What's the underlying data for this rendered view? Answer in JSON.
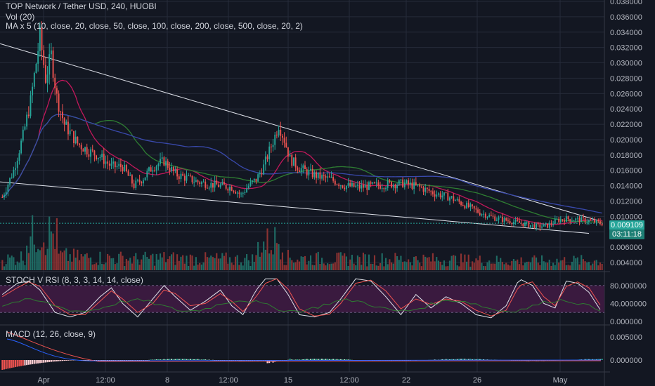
{
  "header": {
    "title": "TOP Network / Tether USD, 240, HUOBI",
    "vol_label": "Vol (20)",
    "ma_label": "MA x 5 (10, close, 20, close, 50, close, 100, close, 200, close, 500, close, 20, 2)"
  },
  "stoch_label": "STOCH V RSI (8, 3, 3, 14, 14, close)",
  "macd_label": "MACD (12, 26, close, 9)",
  "last_price": "0.009109",
  "countdown": "03:11:18",
  "colors": {
    "background": "#131722",
    "grid": "#262b3a",
    "up": "#26a69a",
    "down": "#ef5350",
    "stoch_band": "#3a1a3f",
    "price_tag": "#26a69a",
    "ma_red": "#c2185b",
    "ma_green": "#2e7d32",
    "ma_blue": "#3949ab"
  },
  "chart_data": [
    {
      "type": "candlestick",
      "ylim": [
        0.003,
        0.038
      ],
      "x_ticks": [
        "Apr",
        "12:00",
        "8",
        "12:00",
        "15",
        "12:00",
        "22",
        "26",
        "May"
      ],
      "y_ticks": [
        "0.038000",
        "0.036000",
        "0.034000",
        "0.032000",
        "0.030000",
        "0.028000",
        "0.026000",
        "0.024000",
        "0.022000",
        "0.020000",
        "0.018000",
        "0.016000",
        "0.014000",
        "0.012000",
        "0.010000",
        "0.008000",
        "0.006000",
        "0.004000"
      ],
      "price_path": [
        [
          0,
          0.0125
        ],
        [
          6,
          0.016
        ],
        [
          11,
          0.0205
        ],
        [
          15,
          0.025
        ],
        [
          18,
          0.03
        ],
        [
          20,
          0.0335
        ],
        [
          23,
          0.028
        ],
        [
          26,
          0.031
        ],
        [
          29,
          0.0255
        ],
        [
          33,
          0.022
        ],
        [
          40,
          0.0195
        ],
        [
          46,
          0.0185
        ],
        [
          52,
          0.0178
        ],
        [
          58,
          0.0165
        ],
        [
          64,
          0.0165
        ],
        [
          70,
          0.014
        ],
        [
          75,
          0.015
        ],
        [
          80,
          0.0165
        ],
        [
          86,
          0.0172
        ],
        [
          92,
          0.0155
        ],
        [
          98,
          0.015
        ],
        [
          104,
          0.0145
        ],
        [
          110,
          0.0142
        ],
        [
          116,
          0.014
        ],
        [
          122,
          0.0138
        ],
        [
          127,
          0.0128
        ],
        [
          131,
          0.014
        ],
        [
          135,
          0.0148
        ],
        [
          139,
          0.0165
        ],
        [
          142,
          0.0185
        ],
        [
          145,
          0.0205
        ],
        [
          147,
          0.022
        ],
        [
          150,
          0.02
        ],
        [
          153,
          0.0175
        ],
        [
          157,
          0.0165
        ],
        [
          162,
          0.0158
        ],
        [
          168,
          0.0152
        ],
        [
          175,
          0.0148
        ],
        [
          182,
          0.014
        ],
        [
          190,
          0.0138
        ],
        [
          198,
          0.014
        ],
        [
          206,
          0.0142
        ],
        [
          214,
          0.0143
        ],
        [
          222,
          0.0138
        ],
        [
          230,
          0.013
        ],
        [
          238,
          0.0125
        ],
        [
          246,
          0.0115
        ],
        [
          254,
          0.0105
        ],
        [
          262,
          0.0098
        ],
        [
          270,
          0.0094
        ],
        [
          278,
          0.009
        ],
        [
          285,
          0.0087
        ],
        [
          290,
          0.0088
        ],
        [
          295,
          0.0095
        ],
        [
          300,
          0.0097
        ],
        [
          305,
          0.0096
        ],
        [
          310,
          0.0095
        ],
        [
          315,
          0.0093
        ],
        [
          319,
          0.0091
        ]
      ],
      "last_price": 0.009109
    },
    {
      "type": "bar",
      "name": "Vol (20)"
    },
    {
      "type": "line",
      "name": "STOCH V RSI (8, 3, 3, 14, 14, close)",
      "ylim": [
        0,
        100
      ],
      "y_ticks": [
        "80.000000",
        "40.000000",
        "0.000000"
      ],
      "band": [
        20,
        80
      ],
      "k_path": [
        [
          0,
          60
        ],
        [
          8,
          85
        ],
        [
          14,
          90
        ],
        [
          20,
          70
        ],
        [
          28,
          20
        ],
        [
          36,
          10
        ],
        [
          44,
          20
        ],
        [
          52,
          55
        ],
        [
          58,
          75
        ],
        [
          64,
          40
        ],
        [
          72,
          10
        ],
        [
          80,
          50
        ],
        [
          86,
          80
        ],
        [
          92,
          55
        ],
        [
          100,
          25
        ],
        [
          108,
          45
        ],
        [
          116,
          70
        ],
        [
          122,
          35
        ],
        [
          128,
          15
        ],
        [
          135,
          70
        ],
        [
          140,
          95
        ],
        [
          146,
          95
        ],
        [
          152,
          60
        ],
        [
          158,
          15
        ],
        [
          166,
          10
        ],
        [
          174,
          20
        ],
        [
          180,
          50
        ],
        [
          188,
          95
        ],
        [
          196,
          90
        ],
        [
          204,
          55
        ],
        [
          212,
          15
        ],
        [
          220,
          60
        ],
        [
          228,
          30
        ],
        [
          236,
          55
        ],
        [
          244,
          40
        ],
        [
          252,
          15
        ],
        [
          260,
          8
        ],
        [
          268,
          35
        ],
        [
          275,
          95
        ],
        [
          282,
          80
        ],
        [
          288,
          40
        ],
        [
          294,
          30
        ],
        [
          300,
          90
        ],
        [
          306,
          85
        ],
        [
          312,
          65
        ],
        [
          319,
          20
        ]
      ],
      "d_path": [
        [
          0,
          55
        ],
        [
          8,
          75
        ],
        [
          14,
          88
        ],
        [
          20,
          78
        ],
        [
          28,
          35
        ],
        [
          36,
          15
        ],
        [
          44,
          15
        ],
        [
          52,
          45
        ],
        [
          58,
          68
        ],
        [
          64,
          50
        ],
        [
          72,
          20
        ],
        [
          80,
          40
        ],
        [
          86,
          70
        ],
        [
          92,
          62
        ],
        [
          100,
          35
        ],
        [
          108,
          40
        ],
        [
          116,
          62
        ],
        [
          122,
          45
        ],
        [
          128,
          22
        ],
        [
          135,
          55
        ],
        [
          140,
          85
        ],
        [
          146,
          95
        ],
        [
          152,
          72
        ],
        [
          158,
          28
        ],
        [
          166,
          12
        ],
        [
          174,
          16
        ],
        [
          180,
          40
        ],
        [
          188,
          85
        ],
        [
          196,
          92
        ],
        [
          204,
          68
        ],
        [
          212,
          28
        ],
        [
          220,
          50
        ],
        [
          228,
          38
        ],
        [
          236,
          50
        ],
        [
          244,
          45
        ],
        [
          252,
          25
        ],
        [
          260,
          12
        ],
        [
          268,
          25
        ],
        [
          275,
          80
        ],
        [
          282,
          88
        ],
        [
          288,
          55
        ],
        [
          294,
          35
        ],
        [
          300,
          78
        ],
        [
          306,
          88
        ],
        [
          312,
          75
        ],
        [
          319,
          30
        ]
      ]
    },
    {
      "type": "bar",
      "name": "MACD (12, 26, close, 9)",
      "y_ticks": [
        "0.005000",
        "0.000000"
      ]
    }
  ]
}
